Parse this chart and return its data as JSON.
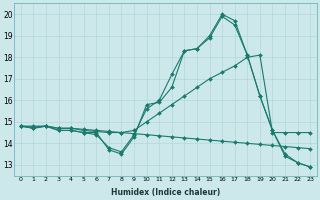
{
  "title": "",
  "xlabel": "Humidex (Indice chaleur)",
  "ylabel": "",
  "bg_color": "#cde8ea",
  "line_color": "#1a7a6e",
  "xlim": [
    -0.5,
    23.5
  ],
  "ylim": [
    12.5,
    20.5
  ],
  "yticks": [
    13,
    14,
    15,
    16,
    17,
    18,
    19,
    20
  ],
  "xticks": [
    0,
    1,
    2,
    3,
    4,
    5,
    6,
    7,
    8,
    9,
    10,
    11,
    12,
    13,
    14,
    15,
    16,
    17,
    18,
    19,
    20,
    21,
    22,
    23
  ],
  "lines": [
    {
      "x": [
        0,
        1,
        2,
        3,
        4,
        5,
        6,
        7,
        8,
        9,
        10,
        11,
        12,
        13,
        14,
        15,
        16,
        17,
        18,
        19,
        20,
        21,
        22,
        23
      ],
      "y": [
        14.8,
        14.7,
        14.8,
        14.6,
        14.6,
        14.5,
        14.5,
        13.7,
        13.5,
        14.3,
        15.8,
        15.9,
        16.6,
        18.3,
        18.4,
        19.0,
        20.0,
        19.7,
        18.1,
        16.2,
        14.6,
        13.5,
        13.1,
        12.9
      ]
    },
    {
      "x": [
        0,
        1,
        2,
        3,
        4,
        5,
        6,
        7,
        8,
        9,
        10,
        11,
        12,
        13,
        14,
        15,
        16,
        17,
        18,
        19,
        20,
        21,
        22,
        23
      ],
      "y": [
        14.8,
        14.7,
        14.8,
        14.6,
        14.6,
        14.5,
        14.4,
        13.8,
        13.6,
        14.4,
        15.6,
        16.0,
        17.2,
        18.3,
        18.4,
        18.9,
        19.9,
        19.5,
        18.1,
        16.2,
        14.6,
        13.4,
        13.1,
        12.9
      ]
    },
    {
      "x": [
        0,
        1,
        2,
        3,
        4,
        5,
        6,
        7,
        8,
        9,
        10,
        11,
        12,
        13,
        14,
        15,
        16,
        17,
        18,
        19,
        20,
        21,
        22,
        23
      ],
      "y": [
        14.8,
        14.75,
        14.8,
        14.7,
        14.7,
        14.65,
        14.6,
        14.55,
        14.5,
        14.6,
        15.0,
        15.4,
        15.8,
        16.2,
        16.6,
        17.0,
        17.3,
        17.6,
        18.0,
        18.1,
        14.5,
        14.5,
        14.5,
        14.5
      ]
    },
    {
      "x": [
        0,
        1,
        2,
        3,
        4,
        5,
        6,
        7,
        8,
        9,
        10,
        11,
        12,
        13,
        14,
        15,
        16,
        17,
        18,
        19,
        20,
        21,
        22,
        23
      ],
      "y": [
        14.8,
        14.8,
        14.8,
        14.7,
        14.7,
        14.6,
        14.55,
        14.5,
        14.5,
        14.45,
        14.4,
        14.35,
        14.3,
        14.25,
        14.2,
        14.15,
        14.1,
        14.05,
        14.0,
        13.95,
        13.9,
        13.85,
        13.8,
        13.75
      ]
    }
  ]
}
